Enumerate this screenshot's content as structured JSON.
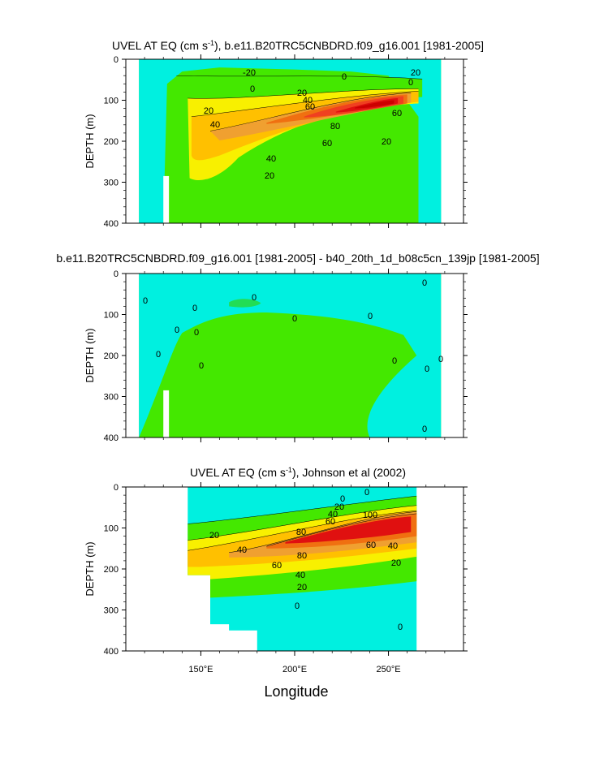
{
  "colors": {
    "cyan": "#00f0e0",
    "green_light": "#22dd55",
    "green": "#44e800",
    "yellow": "#f8f000",
    "orange_light": "#ffc000",
    "orange": "#f0a030",
    "orange_dark": "#f07010",
    "red_orange": "#f04020",
    "red": "#e01010",
    "dark_red": "#cc0000"
  },
  "xaxis": {
    "title": "Longitude",
    "tick_labels": [
      "150°E",
      "200°E",
      "250°E"
    ],
    "tick_values": [
      150,
      200,
      250
    ],
    "range": [
      110,
      290
    ]
  },
  "yaxis": {
    "title": "DEPTH (m)",
    "tick_labels": [
      "0",
      "100",
      "200",
      "300",
      "400"
    ],
    "tick_values": [
      0,
      100,
      200,
      300,
      400
    ],
    "range": [
      0,
      400
    ]
  },
  "chart_data": [
    {
      "type": "heatmap",
      "title": "UVEL AT EQ (cm s-1), b.e11.B20TRC5CNBDRD.f09_g16.001 [1981-2005]",
      "title_parts": {
        "pre": "UVEL AT EQ (cm s",
        "sup": "-1",
        "post": "), b.e11.B20TRC5CNBDRD.f09_g16.001 [1981-2005]"
      },
      "xlabel": "",
      "ylabel": "DEPTH (m)",
      "xlim": [
        110,
        290
      ],
      "ylim": [
        0,
        400
      ],
      "data_extent_lon": [
        117,
        278
      ],
      "contour_labels": [
        "-20",
        "0",
        "0",
        "0",
        "20",
        "20",
        "20",
        "40",
        "40",
        "40",
        "60",
        "60",
        "60",
        "80",
        "20",
        "20"
      ],
      "core": {
        "lon": 235,
        "depth": 110,
        "max_value": 100
      },
      "xtick_labels": [
        "",
        "",
        ""
      ]
    },
    {
      "type": "heatmap",
      "title": "b.e11.B20TRC5CNBDRD.f09_g16.001 [1981-2005] - b40_20th_1d_b08c5cn_139jp [1981-2005]",
      "xlabel": "",
      "ylabel": "DEPTH (m)",
      "xlim": [
        110,
        290
      ],
      "ylim": [
        0,
        400
      ],
      "data_extent_lon": [
        117,
        278
      ],
      "contour_labels": [
        "0",
        "0",
        "0",
        "0",
        "0",
        "0",
        "0",
        "0",
        "0",
        "0",
        "0",
        "0",
        "0",
        "0"
      ],
      "xtick_labels": [
        "",
        "",
        ""
      ]
    },
    {
      "type": "heatmap",
      "title": "UVEL AT EQ (cm s-1), Johnson et al (2002)",
      "title_parts": {
        "pre": "UVEL AT EQ (cm s",
        "sup": "-1",
        "post": "), Johnson et al (2002)"
      },
      "xlabel": "Longitude",
      "ylabel": "DEPTH (m)",
      "xlim": [
        110,
        290
      ],
      "ylim": [
        0,
        400
      ],
      "data_extent_lon": [
        143,
        265
      ],
      "contour_labels": [
        "0",
        "20",
        "40",
        "60",
        "80",
        "100",
        "20",
        "40",
        "80",
        "60",
        "40",
        "20",
        "60",
        "40",
        "20",
        "0",
        "0",
        "0"
      ],
      "core": {
        "lon": 225,
        "depth": 95,
        "max_value": 100
      },
      "xtick_labels": [
        "150°E",
        "200°E",
        "250°E"
      ]
    }
  ]
}
